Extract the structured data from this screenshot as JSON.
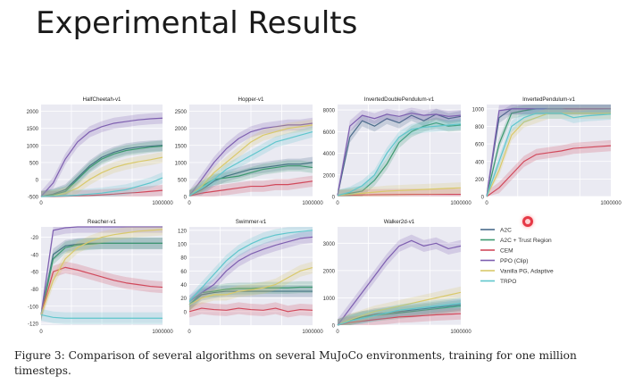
{
  "slide": {
    "title": "Experimental Results",
    "caption": "Figure 3:  Comparison of several algorithms on several MuJoCo environments, training for one million timesteps."
  },
  "colors": {
    "A2C": "#4a6b8a",
    "A2C + Trust Region": "#3d9970",
    "CEM": "#d1495b",
    "PPO (Clip)": "#7e5fb0",
    "Vanilla PG, Adaptive": "#d9c96b",
    "TRPO": "#5fc6cc",
    "plot_bg": "#eaeaf2",
    "grid": "#ffffff"
  },
  "legend": {
    "items": [
      "A2C",
      "A2C + Trust Region",
      "CEM",
      "PPO (Clip)",
      "Vanilla PG, Adaptive",
      "TRPO"
    ]
  },
  "chart_data": [
    {
      "type": "line",
      "title": "HalfCheetah-v1",
      "xlim": [
        0,
        1000000
      ],
      "xticks": [
        "0",
        "1000000"
      ],
      "ylim": [
        -500,
        2200
      ],
      "yticks": [
        2000,
        1500,
        1000,
        500,
        0,
        -500
      ],
      "x": [
        0,
        100000,
        200000,
        300000,
        400000,
        500000,
        600000,
        700000,
        800000,
        900000,
        1000000
      ],
      "series": [
        {
          "name": "A2C",
          "values": [
            -500,
            -430,
            -300,
            50,
            400,
            650,
            800,
            900,
            950,
            980,
            1000
          ]
        },
        {
          "name": "A2C + Trust Region",
          "values": [
            -500,
            -450,
            -350,
            0,
            350,
            600,
            750,
            850,
            900,
            950,
            980
          ]
        },
        {
          "name": "CEM",
          "values": [
            -500,
            -500,
            -490,
            -480,
            -470,
            -450,
            -430,
            -400,
            -380,
            -350,
            -320
          ]
        },
        {
          "name": "PPO (Clip)",
          "values": [
            -500,
            -100,
            600,
            1100,
            1400,
            1550,
            1650,
            1700,
            1750,
            1780,
            1800
          ]
        },
        {
          "name": "Vanilla PG, Adaptive",
          "values": [
            -500,
            -480,
            -400,
            -250,
            0,
            200,
            350,
            450,
            520,
            580,
            650
          ]
        },
        {
          "name": "TRPO",
          "values": [
            -500,
            -490,
            -480,
            -460,
            -430,
            -400,
            -350,
            -300,
            -200,
            -100,
            50
          ]
        }
      ]
    },
    {
      "type": "line",
      "title": "Hopper-v1",
      "xlim": [
        0,
        1000000
      ],
      "xticks": [
        "0",
        "1000000"
      ],
      "ylim": [
        0,
        2700
      ],
      "yticks": [
        2500,
        2000,
        1500,
        1000,
        500,
        0
      ],
      "x": [
        0,
        100000,
        200000,
        300000,
        400000,
        500000,
        600000,
        700000,
        800000,
        900000,
        1000000
      ],
      "series": [
        {
          "name": "A2C",
          "values": [
            20,
            200,
            450,
            600,
            700,
            800,
            850,
            900,
            950,
            950,
            1000
          ]
        },
        {
          "name": "A2C + Trust Region",
          "values": [
            20,
            300,
            500,
            550,
            600,
            700,
            800,
            850,
            900,
            900,
            850
          ]
        },
        {
          "name": "CEM",
          "values": [
            20,
            100,
            150,
            200,
            250,
            300,
            300,
            350,
            350,
            400,
            450
          ]
        },
        {
          "name": "PPO (Clip)",
          "values": [
            20,
            500,
            1000,
            1400,
            1700,
            1900,
            2000,
            2050,
            2100,
            2100,
            2150
          ]
        },
        {
          "name": "Vanilla PG, Adaptive",
          "values": [
            20,
            300,
            700,
            1000,
            1300,
            1600,
            1800,
            1900,
            2000,
            2050,
            2100
          ]
        },
        {
          "name": "TRPO",
          "values": [
            20,
            250,
            500,
            800,
            1000,
            1200,
            1400,
            1600,
            1700,
            1800,
            1900
          ]
        }
      ]
    },
    {
      "type": "line",
      "title": "InvertedDoublePendulum-v1",
      "xlim": [
        0,
        1000000
      ],
      "xticks": [
        "0",
        "1000000"
      ],
      "ylim": [
        0,
        8500
      ],
      "yticks": [
        8000,
        6000,
        4000,
        2000,
        0
      ],
      "x": [
        0,
        100000,
        200000,
        300000,
        400000,
        500000,
        600000,
        700000,
        800000,
        900000,
        1000000
      ],
      "series": [
        {
          "name": "A2C",
          "values": [
            100,
            5500,
            7000,
            6500,
            7200,
            6800,
            7500,
            7000,
            7600,
            7200,
            7400
          ]
        },
        {
          "name": "A2C + Trust Region",
          "values": [
            100,
            300,
            500,
            1500,
            3000,
            5000,
            6000,
            6500,
            6800,
            6500,
            6600
          ]
        },
        {
          "name": "CEM",
          "values": [
            100,
            120,
            150,
            170,
            180,
            190,
            200,
            200,
            200,
            200,
            200
          ]
        },
        {
          "name": "PPO (Clip)",
          "values": [
            100,
            6500,
            7500,
            7200,
            7600,
            7400,
            7700,
            7500,
            7600,
            7400,
            7500
          ]
        },
        {
          "name": "Vanilla PG, Adaptive",
          "values": [
            100,
            200,
            300,
            400,
            500,
            550,
            600,
            650,
            700,
            750,
            800
          ]
        },
        {
          "name": "TRPO",
          "values": [
            100,
            400,
            1000,
            2000,
            4000,
            5500,
            6200,
            6400,
            6500,
            6600,
            6700
          ]
        }
      ]
    },
    {
      "type": "line",
      "title": "InvertedPendulum-v1",
      "xlim": [
        0,
        1000000
      ],
      "xticks": [
        "0",
        "1000000"
      ],
      "ylim": [
        0,
        1050
      ],
      "yticks": [
        1000,
        800,
        600,
        400,
        200,
        0
      ],
      "x": [
        0,
        100000,
        200000,
        300000,
        400000,
        500000,
        600000,
        700000,
        800000,
        900000,
        1000000
      ],
      "series": [
        {
          "name": "A2C",
          "values": [
            0,
            900,
            1000,
            1000,
            1000,
            1000,
            1000,
            1000,
            1000,
            1000,
            1000
          ]
        },
        {
          "name": "A2C + Trust Region",
          "values": [
            0,
            600,
            950,
            980,
            1000,
            1000,
            1000,
            1000,
            1000,
            1000,
            1000
          ]
        },
        {
          "name": "CEM",
          "values": [
            0,
            100,
            250,
            400,
            480,
            500,
            520,
            550,
            560,
            570,
            580
          ]
        },
        {
          "name": "PPO (Clip)",
          "values": [
            0,
            980,
            1000,
            1000,
            1000,
            1000,
            1000,
            1000,
            1000,
            1000,
            1000
          ]
        },
        {
          "name": "Vanilla PG, Adaptive",
          "values": [
            0,
            300,
            700,
            850,
            900,
            950,
            950,
            950,
            950,
            950,
            950
          ]
        },
        {
          "name": "TRPO",
          "values": [
            0,
            400,
            800,
            900,
            950,
            950,
            950,
            900,
            920,
            930,
            940
          ]
        }
      ]
    },
    {
      "type": "line",
      "title": "Reacher-v1",
      "xlim": [
        0,
        1000000
      ],
      "xticks": [
        "0",
        "1000000"
      ],
      "ylim": [
        -122,
        -8
      ],
      "yticks": [
        -20,
        -40,
        -60,
        -80,
        -100,
        -120
      ],
      "x": [
        0,
        100000,
        200000,
        300000,
        400000,
        500000,
        600000,
        700000,
        800000,
        900000,
        1000000
      ],
      "series": [
        {
          "name": "A2C",
          "values": [
            -110,
            -40,
            -30,
            -28,
            -27,
            -27,
            -27,
            -27,
            -27,
            -27,
            -27
          ]
        },
        {
          "name": "A2C + Trust Region",
          "values": [
            -110,
            -45,
            -32,
            -29,
            -28,
            -27,
            -27,
            -27,
            -27,
            -27,
            -27
          ]
        },
        {
          "name": "CEM",
          "values": [
            -110,
            -60,
            -55,
            -58,
            -62,
            -66,
            -70,
            -73,
            -75,
            -77,
            -78
          ]
        },
        {
          "name": "PPO (Clip)",
          "values": [
            -110,
            -12,
            -9,
            -8,
            -8,
            -8,
            -8,
            -8,
            -8,
            -8,
            -8
          ]
        },
        {
          "name": "Vanilla PG, Adaptive",
          "values": [
            -110,
            -70,
            -45,
            -32,
            -25,
            -20,
            -17,
            -15,
            -13,
            -12,
            -11
          ]
        },
        {
          "name": "TRPO",
          "values": [
            -110,
            -113,
            -114,
            -114,
            -114,
            -114,
            -114,
            -114,
            -114,
            -114,
            -114
          ]
        }
      ]
    },
    {
      "type": "line",
      "title": "Swimmer-v1",
      "xlim": [
        0,
        1000000
      ],
      "xticks": [
        "0",
        "1000000"
      ],
      "ylim": [
        -20,
        125
      ],
      "yticks": [
        120,
        100,
        80,
        60,
        40,
        20,
        0
      ],
      "x": [
        0,
        100000,
        200000,
        300000,
        400000,
        500000,
        600000,
        700000,
        800000,
        900000,
        1000000
      ],
      "series": [
        {
          "name": "A2C",
          "values": [
            10,
            25,
            28,
            30,
            30,
            30,
            30,
            30,
            30,
            30,
            30
          ]
        },
        {
          "name": "A2C + Trust Region",
          "values": [
            10,
            28,
            30,
            33,
            34,
            34,
            35,
            35,
            35,
            36,
            36
          ]
        },
        {
          "name": "CEM",
          "values": [
            0,
            5,
            3,
            2,
            5,
            3,
            2,
            5,
            0,
            3,
            2
          ]
        },
        {
          "name": "PPO (Clip)",
          "values": [
            15,
            28,
            40,
            60,
            75,
            85,
            92,
            98,
            103,
            108,
            110
          ]
        },
        {
          "name": "Vanilla PG, Adaptive",
          "values": [
            10,
            20,
            25,
            25,
            30,
            32,
            35,
            40,
            50,
            60,
            65
          ]
        },
        {
          "name": "TRPO",
          "values": [
            15,
            35,
            55,
            75,
            90,
            100,
            108,
            113,
            116,
            118,
            120
          ]
        }
      ]
    },
    {
      "type": "line",
      "title": "Walker2d-v1",
      "xlim": [
        0,
        1000000
      ],
      "xticks": [
        "0",
        "1000000"
      ],
      "ylim": [
        0,
        3600
      ],
      "yticks": [
        3000,
        2000,
        1000,
        0
      ],
      "x": [
        0,
        100000,
        200000,
        300000,
        400000,
        500000,
        600000,
        700000,
        800000,
        900000,
        1000000
      ],
      "series": [
        {
          "name": "A2C",
          "values": [
            0,
            200,
            300,
            400,
            450,
            500,
            550,
            600,
            650,
            700,
            750
          ]
        },
        {
          "name": "A2C + Trust Region",
          "values": [
            0,
            150,
            300,
            350,
            400,
            450,
            500,
            550,
            600,
            650,
            700
          ]
        },
        {
          "name": "CEM",
          "values": [
            0,
            100,
            150,
            200,
            250,
            300,
            320,
            350,
            380,
            400,
            420
          ]
        },
        {
          "name": "PPO (Clip)",
          "values": [
            0,
            600,
            1200,
            1800,
            2400,
            2900,
            3100,
            2900,
            3000,
            2800,
            2900
          ]
        },
        {
          "name": "Vanilla PG, Adaptive",
          "values": [
            0,
            200,
            350,
            500,
            600,
            700,
            800,
            900,
            1000,
            1100,
            1200
          ]
        },
        {
          "name": "TRPO",
          "values": [
            0,
            150,
            250,
            350,
            450,
            550,
            600,
            650,
            700,
            750,
            800
          ]
        }
      ]
    }
  ]
}
